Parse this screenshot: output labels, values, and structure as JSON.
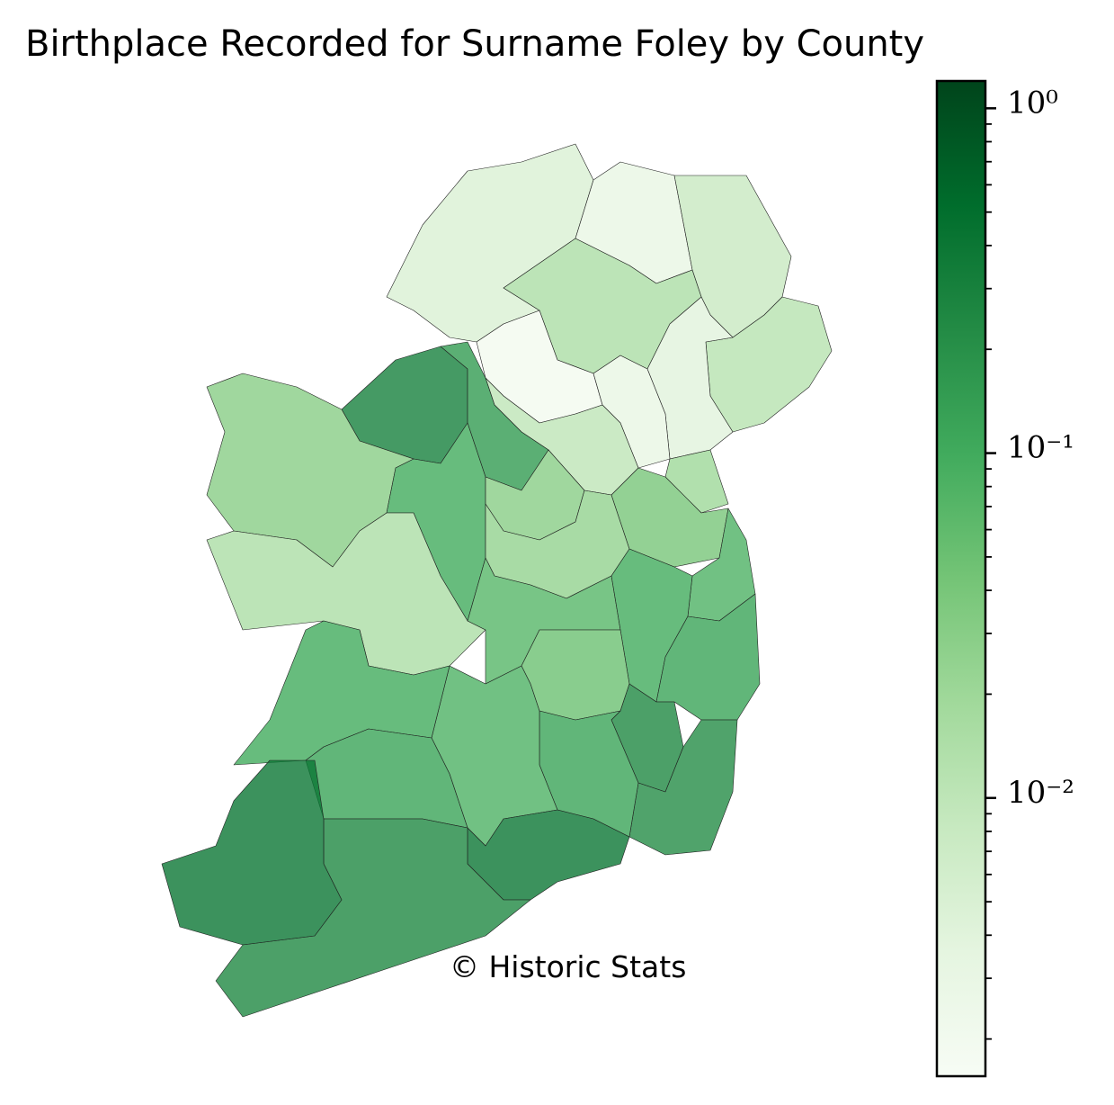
{
  "chart_data": {
    "type": "choropleth",
    "title": "Birthplace Recorded for Surname Foley by County",
    "annotation": "© Historic Stats",
    "values": [
      0.005,
      0.003,
      0.008,
      0.015,
      0.012,
      0.004,
      0.002,
      0.003,
      0.01,
      0.02,
      0.3,
      0.15,
      0.03,
      0.1,
      0.03,
      0.025,
      0.04,
      0.08,
      0.015,
      0.07,
      0.1,
      0.12,
      0.05,
      0.25,
      0.22,
      0.12,
      0.08,
      0.1,
      0.12,
      0.4,
      0.25,
      0.4
    ],
    "scale": "log",
    "clim": [
      0.00156,
      1.2
    ],
    "cticks": [
      {
        "value": 1,
        "label": "10⁰"
      },
      {
        "value": 0.1,
        "label": "10⁻¹"
      },
      {
        "value": 0.01,
        "label": "10⁻²"
      }
    ],
    "cminorticks": [
      0.002,
      0.003,
      0.004,
      0.005,
      0.006,
      0.007,
      0.008,
      0.009,
      0.02,
      0.03,
      0.04,
      0.05,
      0.06,
      0.07,
      0.08,
      0.09,
      0.2,
      0.3,
      0.4,
      0.5,
      0.6,
      0.7,
      0.8,
      0.9
    ],
    "colormap": [
      "#f7fcf5",
      "#e5f5e0",
      "#c7e9c0",
      "#a1d99b",
      "#74c476",
      "#41ab5d",
      "#238b45",
      "#006d2c",
      "#00441b"
    ]
  }
}
